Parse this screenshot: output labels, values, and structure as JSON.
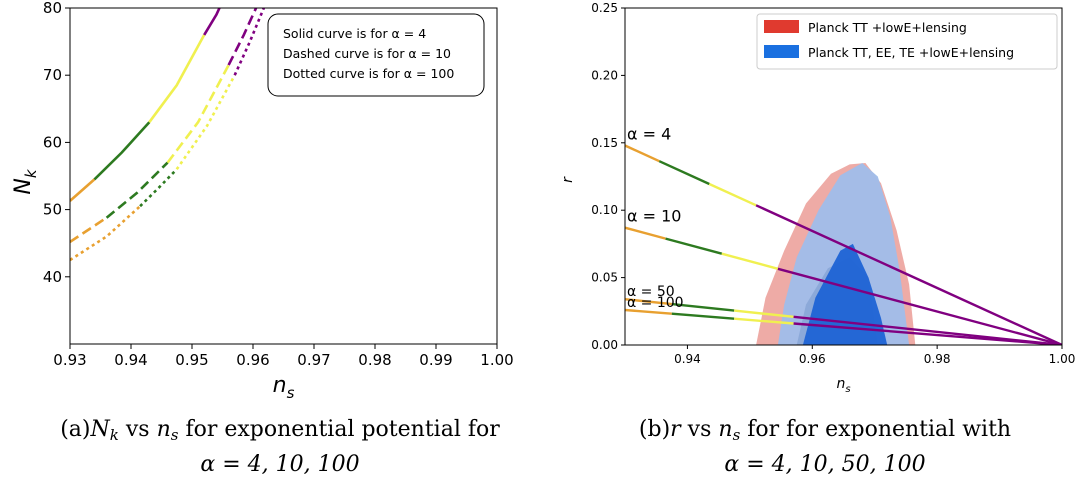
{
  "chart_data": [
    {
      "type": "line",
      "xlabel_main": "n",
      "xlabel_sub": "s",
      "ylabel_main": "N",
      "ylabel_sub": "k",
      "xlim": [
        0.93,
        1.0
      ],
      "ylim": [
        30,
        80
      ],
      "xticks": [
        "0.93",
        "0.94",
        "0.95",
        "0.96",
        "0.97",
        "0.98",
        "0.99",
        "1.00"
      ],
      "yticks": [
        "40",
        "50",
        "60",
        "70",
        "80"
      ],
      "grid": false,
      "legend_box": [
        "Solid curve is for α = 4",
        "Dashed curve is for α = 10",
        "Dotted curve is for α = 100"
      ],
      "legend_placement": "top-right",
      "series": [
        {
          "alpha": 4,
          "style": "solid",
          "segments": [
            {
              "color": "#e8a030",
              "points": [
                [
                  0.93,
                  51.3
                ],
                [
                  0.934,
                  54.5
                ]
              ]
            },
            {
              "color": "#2d7a20",
              "points": [
                [
                  0.934,
                  54.5
                ],
                [
                  0.9385,
                  58.5
                ],
                [
                  0.943,
                  63.0
                ]
              ]
            },
            {
              "color": "#f0f050",
              "points": [
                [
                  0.943,
                  63.0
                ],
                [
                  0.9475,
                  68.5
                ],
                [
                  0.952,
                  76.0
                ]
              ]
            },
            {
              "color": "#800080",
              "points": [
                [
                  0.952,
                  76.0
                ],
                [
                  0.954,
                  79.0
                ],
                [
                  0.955,
                  81.0
                ]
              ]
            }
          ]
        },
        {
          "alpha": 10,
          "style": "dashed",
          "segments": [
            {
              "color": "#e8a030",
              "points": [
                [
                  0.93,
                  45.2
                ],
                [
                  0.936,
                  48.8
                ]
              ]
            },
            {
              "color": "#2d7a20",
              "points": [
                [
                  0.936,
                  48.8
                ],
                [
                  0.941,
                  52.5
                ],
                [
                  0.946,
                  57.0
                ]
              ]
            },
            {
              "color": "#f0f050",
              "points": [
                [
                  0.946,
                  57.0
                ],
                [
                  0.951,
                  63.0
                ],
                [
                  0.956,
                  71.5
                ]
              ]
            },
            {
              "color": "#800080",
              "points": [
                [
                  0.956,
                  71.5
                ],
                [
                  0.9585,
                  76.0
                ],
                [
                  0.961,
                  81.0
                ]
              ]
            }
          ]
        },
        {
          "alpha": 100,
          "style": "dotted",
          "segments": [
            {
              "color": "#e8a030",
              "points": [
                [
                  0.93,
                  42.5
                ],
                [
                  0.936,
                  46.0
                ],
                [
                  0.9415,
                  50.5
                ]
              ]
            },
            {
              "color": "#2d7a20",
              "points": [
                [
                  0.9415,
                  50.5
                ],
                [
                  0.9445,
                  53.2
                ],
                [
                  0.9475,
                  56.0
                ]
              ]
            },
            {
              "color": "#f0f050",
              "points": [
                [
                  0.9475,
                  56.0
                ],
                [
                  0.9525,
                  62.5
                ],
                [
                  0.957,
                  70.0
                ]
              ]
            },
            {
              "color": "#800080",
              "points": [
                [
                  0.957,
                  70.0
                ],
                [
                  0.9595,
                  75.0
                ],
                [
                  0.962,
                  80.5
                ]
              ]
            }
          ]
        }
      ]
    },
    {
      "type": "line",
      "xlabel_main": "n",
      "xlabel_sub": "s",
      "ylabel": "r",
      "xlim": [
        0.93,
        1.0
      ],
      "ylim": [
        0.0,
        0.25
      ],
      "xticks": [
        "0.94",
        "0.96",
        "0.98",
        "1.00"
      ],
      "xtick_values": [
        0.94,
        0.96,
        0.98,
        1.0
      ],
      "yticks": [
        "0.00",
        "0.05",
        "0.10",
        "0.15",
        "0.20",
        "0.25"
      ],
      "ytick_values": [
        0.0,
        0.05,
        0.1,
        0.15,
        0.2,
        0.25
      ],
      "grid": false,
      "legend": [
        {
          "label": "Planck TT +lowE+lensing",
          "color": "#e03a2f"
        },
        {
          "label": "Planck TT, EE, TE +lowE+lensing",
          "color": "#1a70e0"
        }
      ],
      "legend_placement": "top-right",
      "contours": [
        {
          "name": "Planck TT +lowE+lensing 95%",
          "color": "#eda6a1",
          "points": [
            [
              0.951,
              0.0
            ],
            [
              0.9525,
              0.035
            ],
            [
              0.9555,
              0.07
            ],
            [
              0.959,
              0.105
            ],
            [
              0.963,
              0.127
            ],
            [
              0.966,
              0.134
            ],
            [
              0.9685,
              0.135
            ],
            [
              0.971,
              0.12
            ],
            [
              0.9735,
              0.085
            ],
            [
              0.9755,
              0.045
            ],
            [
              0.9765,
              0.0
            ]
          ]
        },
        {
          "name": "Planck TT,EE,TE 95%",
          "color": "#9fbdea",
          "points": [
            [
              0.9545,
              0.0
            ],
            [
              0.9555,
              0.03
            ],
            [
              0.9575,
              0.065
            ],
            [
              0.961,
              0.1
            ],
            [
              0.9645,
              0.126
            ],
            [
              0.968,
              0.135
            ],
            [
              0.9705,
              0.125
            ],
            [
              0.9725,
              0.095
            ],
            [
              0.974,
              0.055
            ],
            [
              0.9755,
              0.0
            ]
          ]
        },
        {
          "name": "Planck TT +lowE+lensing 68%",
          "color": "#8ba8d8",
          "points": [
            [
              0.9575,
              0.0
            ],
            [
              0.959,
              0.03
            ],
            [
              0.9625,
              0.057
            ],
            [
              0.966,
              0.065
            ],
            [
              0.969,
              0.05
            ],
            [
              0.9705,
              0.0
            ]
          ]
        },
        {
          "name": "Planck TT,EE,TE 68%",
          "color": "#1f63d5",
          "points": [
            [
              0.9585,
              0.0
            ],
            [
              0.9605,
              0.035
            ],
            [
              0.9645,
              0.07
            ],
            [
              0.9665,
              0.075
            ],
            [
              0.969,
              0.05
            ],
            [
              0.971,
              0.02
            ],
            [
              0.972,
              0.0
            ]
          ]
        }
      ],
      "series": [
        {
          "label": "α = 4",
          "start_r": 0.148,
          "end_point": [
            1.0,
            0.0
          ],
          "segments": [
            {
              "color": "#e8a030",
              "x": [
                0.93,
                0.9355
              ]
            },
            {
              "color": "#2d7a20",
              "x": [
                0.9355,
                0.9435
              ]
            },
            {
              "color": "#f0f050",
              "x": [
                0.9435,
                0.951
              ]
            },
            {
              "color": "#800080",
              "x": [
                0.951,
                1.0
              ]
            }
          ]
        },
        {
          "label": "α = 10",
          "start_r": 0.087,
          "end_point": [
            1.0,
            0.0
          ],
          "segments": [
            {
              "color": "#e8a030",
              "x": [
                0.93,
                0.9365
              ]
            },
            {
              "color": "#2d7a20",
              "x": [
                0.9365,
                0.9455
              ]
            },
            {
              "color": "#f0f050",
              "x": [
                0.9455,
                0.9545
              ]
            },
            {
              "color": "#800080",
              "x": [
                0.9545,
                1.0
              ]
            }
          ]
        },
        {
          "label": "α = 50",
          "start_r": 0.034,
          "end_point": [
            1.0,
            0.0
          ],
          "segments": [
            {
              "color": "#e8a030",
              "x": [
                0.93,
                0.9375
              ]
            },
            {
              "color": "#2d7a20",
              "x": [
                0.9375,
                0.9475
              ]
            },
            {
              "color": "#f0f050",
              "x": [
                0.9475,
                0.957
              ]
            },
            {
              "color": "#800080",
              "x": [
                0.957,
                1.0
              ]
            }
          ]
        },
        {
          "label": "α = 100",
          "start_r": 0.026,
          "end_point": [
            1.0,
            0.0
          ],
          "segments": [
            {
              "color": "#e8a030",
              "x": [
                0.93,
                0.9375
              ]
            },
            {
              "color": "#2d7a20",
              "x": [
                0.9375,
                0.9475
              ]
            },
            {
              "color": "#f0f050",
              "x": [
                0.9475,
                0.957
              ]
            },
            {
              "color": "#800080",
              "x": [
                0.957,
                1.0
              ]
            }
          ]
        }
      ]
    }
  ],
  "captions": {
    "a": {
      "prefix": "(a)",
      "var1": "N",
      "sub1": "k",
      "mid": " vs ",
      "var2": "n",
      "sub2": "s",
      "rest": " for exponential potential for",
      "line2": "α = 4, 10, 100"
    },
    "b": {
      "prefix": "(b)",
      "var1": "r",
      "mid": " vs ",
      "var2": "n",
      "sub2": "s",
      "rest": " for for exponential with",
      "line2": "α = 4, 10, 50, 100"
    }
  }
}
